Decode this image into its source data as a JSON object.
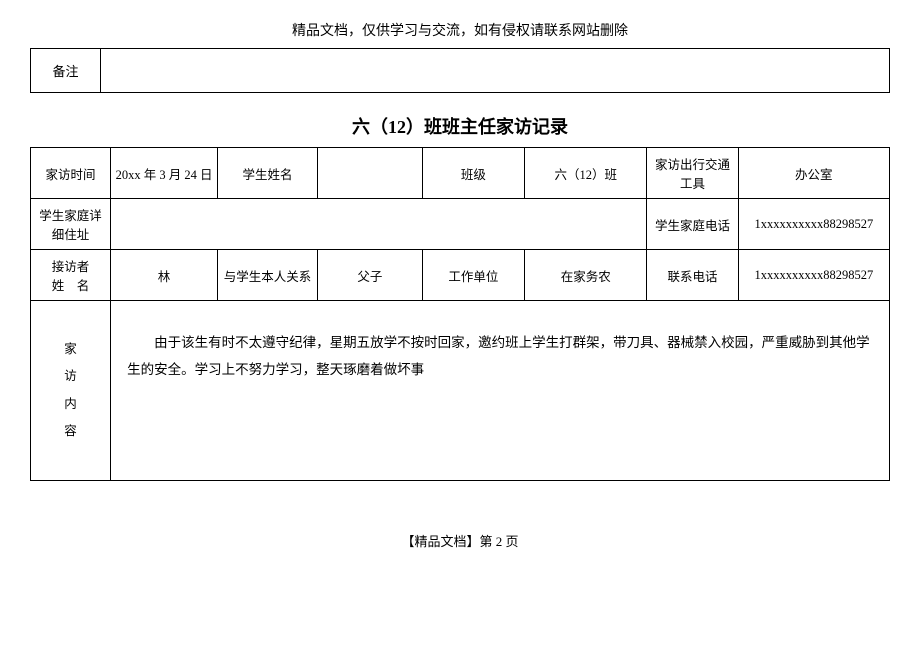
{
  "header_note": "精品文档，仅供学习与交流，如有侵权请联系网站删除",
  "remark": {
    "label": "备注",
    "value": ""
  },
  "title": "六（12）班班主任家访记录",
  "row1": {
    "visit_time_label": "家访时间",
    "visit_time": "20xx 年 3 月 24 日",
    "student_name_label": "学生姓名",
    "student_name": "",
    "class_label": "班级",
    "class": "六（12）班",
    "transport_label": "家访出行交通工具",
    "transport": "办公室"
  },
  "row2": {
    "address_label": "学生家庭详细住址",
    "address": "",
    "family_phone_label": "学生家庭电话",
    "family_phone": "1xxxxxxxxxx88298527"
  },
  "row3": {
    "interviewee_label": "接访者\n姓　名",
    "interviewee": "林",
    "relation_label": "与学生本人关系",
    "relation": "父子",
    "workplace_label": "工作单位",
    "workplace": "在家务农",
    "contact_label": "联系电话",
    "contact": "1xxxxxxxxxx88298527"
  },
  "content": {
    "label": "家\n访\n内\n容",
    "text": "　　由于该生有时不太遵守纪律，星期五放学不按时回家，邀约班上学生打群架，带刀具、器械禁入校园，严重威胁到其他学生的安全。学习上不努力学习，整天琢磨着做坏事"
  },
  "footer": "【精品文档】第 2 页"
}
